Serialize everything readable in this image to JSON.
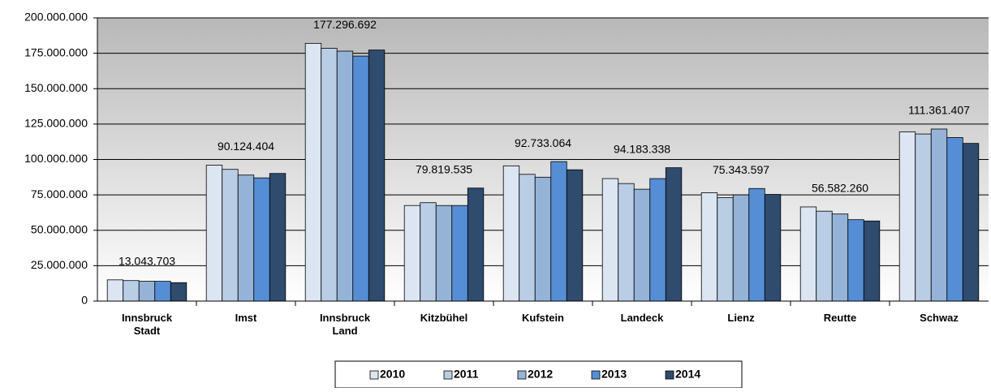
{
  "chart_data": {
    "type": "bar",
    "categories": [
      "Innsbruck Stadt",
      "Imst",
      "Innsbruck Land",
      "Kitzbühel",
      "Kufstein",
      "Landeck",
      "Lienz",
      "Reutte",
      "Schwaz"
    ],
    "series": [
      {
        "name": "2010",
        "color": "#dce6f2",
        "values": [
          15000000,
          96000000,
          182000000,
          67500000,
          95500000,
          86500000,
          76500000,
          66500000,
          119500000
        ]
      },
      {
        "name": "2011",
        "color": "#b9cde5",
        "values": [
          14500000,
          93000000,
          178500000,
          69500000,
          89500000,
          83000000,
          73000000,
          63500000,
          118000000
        ]
      },
      {
        "name": "2012",
        "color": "#95b3d7",
        "values": [
          14000000,
          89000000,
          176500000,
          67500000,
          87500000,
          79000000,
          75000000,
          61500000,
          121500000
        ]
      },
      {
        "name": "2013",
        "color": "#558ed5",
        "values": [
          14000000,
          87000000,
          173000000,
          67500000,
          98500000,
          86500000,
          79500000,
          57500000,
          115500000
        ]
      },
      {
        "name": "2014",
        "color": "#2f4b6e",
        "values": [
          13043703,
          90124404,
          177296692,
          79819535,
          92733064,
          94183338,
          75343597,
          56582260,
          111361407
        ],
        "value_labels": [
          "13.043.703",
          "90.124.404",
          "177.296.692",
          "79.819.535",
          "92.733.064",
          "94.183.338",
          "75.343.597",
          "56.582.260",
          "111.361.407"
        ]
      }
    ],
    "ylim": [
      0,
      200000000
    ],
    "yticks": [
      0,
      {
        "value": 25000000,
        "label": "25.000.000"
      },
      {
        "value": 50000000,
        "label": "50.000.000"
      },
      {
        "value": 75000000,
        "label": "75.000.000"
      },
      {
        "value": 100000000,
        "label": "100.000.000"
      },
      {
        "value": 125000000,
        "label": "125.000.000"
      },
      {
        "value": 150000000,
        "label": "150.000.000"
      },
      {
        "value": 175000000,
        "label": "175.000.000"
      },
      {
        "value": 200000000,
        "label": "200.000.000"
      }
    ],
    "grid": true,
    "legend": "bottom"
  }
}
